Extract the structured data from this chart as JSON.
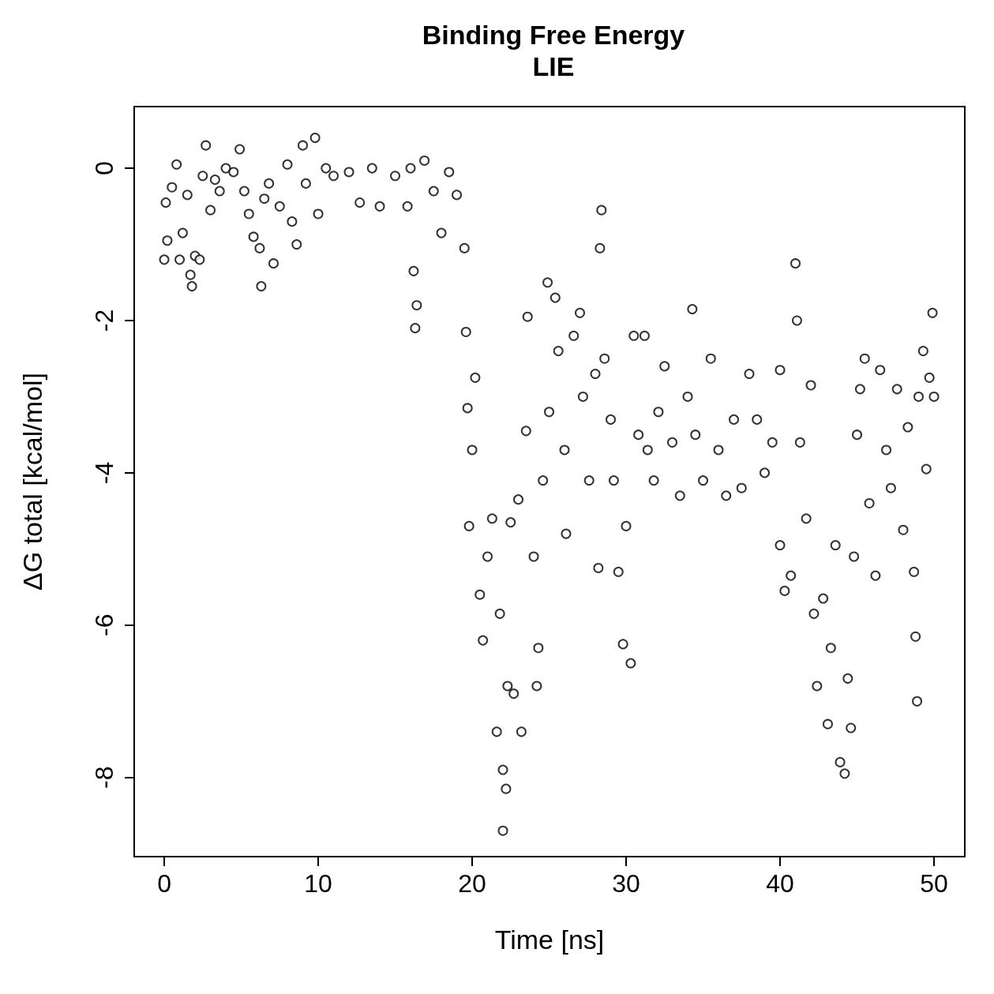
{
  "chart_data": {
    "type": "scatter",
    "title": "Binding Free Energy",
    "subtitle": "LIE",
    "xlabel": "Time [ns]",
    "ylabel": "ΔG total [kcal/mol]",
    "xlim": [
      -1.95,
      52
    ],
    "xticks": [
      0,
      10,
      20,
      30,
      40,
      50
    ],
    "ylim": [
      -9.04,
      0.81
    ],
    "yticks": [
      -8,
      -6,
      -4,
      -2,
      0
    ],
    "grid": false,
    "marker": "circle",
    "series": [
      {
        "color": "#000000",
        "x": [
          0,
          0.1,
          0.2,
          0.5,
          0.8,
          1.0,
          1.2,
          1.5,
          1.7,
          1.8,
          2.0,
          2.3,
          2.5,
          2.7,
          3,
          3.3,
          3.6,
          4,
          4.5,
          4.9,
          5.2,
          5.5,
          5.8,
          6.2,
          6.3,
          6.5,
          6.8,
          7.1,
          7.5,
          8.0,
          8.3,
          8.6,
          9.0,
          9.2,
          9.8,
          10.0,
          10.5,
          11,
          12,
          12.7,
          13.5,
          14.0,
          15,
          15.8,
          16.0,
          16.2,
          16.4,
          16.3,
          16.9,
          17.5,
          18,
          18.5,
          19,
          19.5,
          19.6,
          19.7,
          19.8,
          20,
          20.2,
          20.5,
          20.7,
          21.0,
          21.3,
          21.6,
          21.8,
          22.0,
          22.0,
          22.2,
          22.3,
          22.5,
          22.7,
          23.0,
          23.2,
          23.5,
          23.6,
          24,
          24.2,
          24.3,
          24.6,
          24.9,
          25.0,
          25.4,
          25.6,
          26.0,
          26.1,
          26.6,
          27,
          27.2,
          27.6,
          28,
          28.2,
          28.4,
          28.3,
          28.6,
          29.0,
          29.2,
          29.5,
          29.8,
          30.0,
          30.3,
          30.5,
          30.8,
          31.2,
          31.4,
          31.8,
          32.1,
          32.5,
          33,
          33.5,
          34,
          34.3,
          34.5,
          35,
          35.5,
          36,
          36.5,
          37,
          37.5,
          38,
          38.5,
          39,
          39.5,
          40,
          40.0,
          40.3,
          40.7,
          41.0,
          41.1,
          41.3,
          41.7,
          42,
          42.2,
          42.4,
          42.8,
          43.1,
          43.3,
          43.6,
          43.9,
          44.2,
          44.4,
          44.6,
          44.8,
          45.0,
          45.2,
          45.5,
          45.8,
          46.2,
          46.5,
          46.9,
          47.2,
          47.6,
          48.0,
          48.3,
          48.7,
          48.8,
          48.9,
          49.0,
          49.3,
          49.5,
          49.7,
          49.9,
          50
        ],
        "values": [
          -1.2,
          -0.45,
          -0.95,
          -0.25,
          0.05,
          -1.2,
          -0.85,
          -0.35,
          -1.4,
          -1.55,
          -1.15,
          -1.2,
          -0.1,
          0.3,
          -0.55,
          -0.15,
          -0.3,
          0,
          -0.05,
          0.25,
          -0.3,
          -0.6,
          -0.9,
          -1.05,
          -1.55,
          -0.4,
          -0.2,
          -1.25,
          -0.5,
          0.05,
          -0.7,
          -1.0,
          0.3,
          -0.2,
          0.4,
          -0.6,
          0.0,
          -0.1,
          -0.05,
          -0.45,
          0.0,
          -0.5,
          -0.1,
          -0.5,
          0.0,
          -1.35,
          -1.8,
          -2.1,
          0.1,
          -0.3,
          -0.85,
          -0.05,
          -0.35,
          -1.05,
          -2.15,
          -3.15,
          -4.7,
          -3.7,
          -2.75,
          -5.6,
          -6.2,
          -5.1,
          -4.6,
          -7.4,
          -5.85,
          -8.7,
          -7.9,
          -8.15,
          -6.8,
          -4.65,
          -6.9,
          -4.35,
          -7.4,
          -3.45,
          -1.95,
          -5.1,
          -6.8,
          -6.3,
          -4.1,
          -1.5,
          -3.2,
          -1.7,
          -2.4,
          -3.7,
          -4.8,
          -2.2,
          -1.9,
          -3.0,
          -4.1,
          -2.7,
          -5.25,
          -0.55,
          -1.05,
          -2.5,
          -3.3,
          -4.1,
          -5.3,
          -6.25,
          -4.7,
          -6.5,
          -2.2,
          -3.5,
          -2.2,
          -3.7,
          -4.1,
          -3.2,
          -2.6,
          -3.6,
          -4.3,
          -3.0,
          -1.85,
          -3.5,
          -4.1,
          -2.5,
          -3.7,
          -4.3,
          -3.3,
          -4.2,
          -2.7,
          -3.3,
          -4.0,
          -3.6,
          -2.65,
          -4.95,
          -5.55,
          -5.35,
          -1.25,
          -2.0,
          -3.6,
          -4.6,
          -2.85,
          -5.85,
          -6.8,
          -5.65,
          -7.3,
          -6.3,
          -4.95,
          -7.8,
          -7.95,
          -6.7,
          -7.35,
          -5.1,
          -3.5,
          -2.9,
          -2.5,
          -4.4,
          -5.35,
          -2.65,
          -3.7,
          -4.2,
          -2.9,
          -4.75,
          -3.4,
          -5.3,
          -6.15,
          -7.0,
          -3.0,
          -2.4,
          -3.95,
          -2.75,
          -1.9,
          -3.0
        ]
      }
    ]
  }
}
